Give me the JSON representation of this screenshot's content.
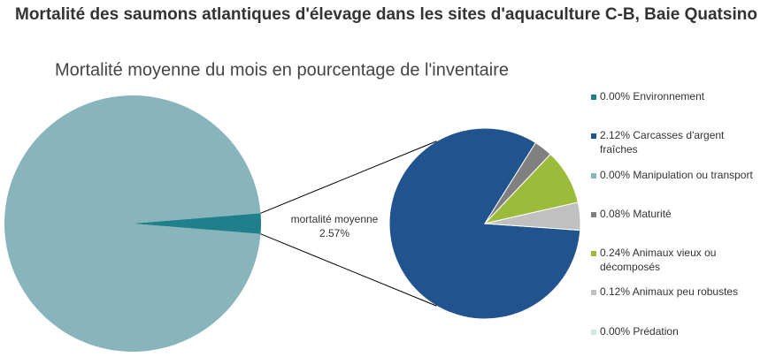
{
  "chart_data": {
    "type": "pie-of-pie",
    "title": "Mortalité des saumons atlantiques d'élevage dans les sites d'aquaculture C-B, Baie Quatsino",
    "subtitle": "Mortalité moyenne du mois en pourcentage de l'inventaire",
    "main": {
      "categories": [
        null,
        "mortalité moyenne"
      ],
      "values": [
        97.43,
        2.57
      ],
      "value_labels": [
        null,
        "2.57%"
      ],
      "colors": [
        "#88b4bc",
        "#1f7f8a"
      ]
    },
    "detail": {
      "categories": [
        "Environnement",
        "Carcasses d'argent fraîches",
        "Manipulation ou transport",
        "Maturité",
        "Animaux vieux ou décomposés",
        "Animaux peu robustes",
        "Prédation"
      ],
      "values": [
        0.0,
        2.12,
        0.0,
        0.08,
        0.24,
        0.12,
        0.0
      ],
      "value_labels": [
        "0.00%",
        "2.12%",
        "0.00%",
        "0.08%",
        "0.24%",
        "0.12%",
        "0.00%"
      ],
      "colors": [
        "#1f7f8a",
        "#21548f",
        "#88b4bc",
        "#808080",
        "#9dbb3b",
        "#c0c0c0",
        "#cfe8e8"
      ]
    },
    "legend": "right"
  }
}
